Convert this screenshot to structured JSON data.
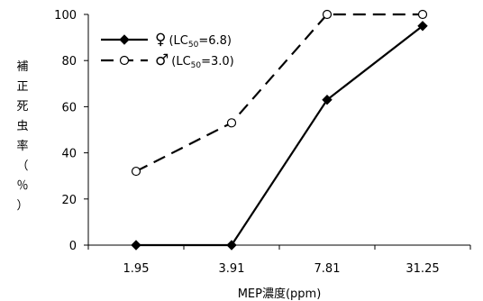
{
  "chart_data": {
    "type": "line",
    "categories": [
      "1.95",
      "3.91",
      "7.81",
      "31.25"
    ],
    "series": [
      {
        "name": "♀(LC50=6.8)",
        "name_parts": {
          "symbol": "♀",
          "prefix": "(LC",
          "sub": "50",
          "suffix": "=6.8)"
        },
        "marker": "filled-diamond",
        "line": "solid",
        "values": [
          0,
          0,
          63,
          95
        ]
      },
      {
        "name": "♂(LC50=3.0)",
        "name_parts": {
          "symbol": "♂",
          "prefix": "(LC",
          "sub": "50",
          "suffix": "=3.0)"
        },
        "marker": "open-circle",
        "line": "dashed",
        "values": [
          32,
          53,
          100,
          100
        ]
      }
    ],
    "xlabel": "MEP濃度(ppm)",
    "ylabel": "補正死虫率（％）",
    "ylabel_chars": [
      "補",
      "正",
      "死",
      "虫",
      "率",
      "（",
      "％",
      "）"
    ],
    "ylim": [
      0,
      100
    ],
    "yticks": [
      0,
      20,
      40,
      60,
      80,
      100
    ],
    "grid": false,
    "legend_position": "top-left"
  }
}
